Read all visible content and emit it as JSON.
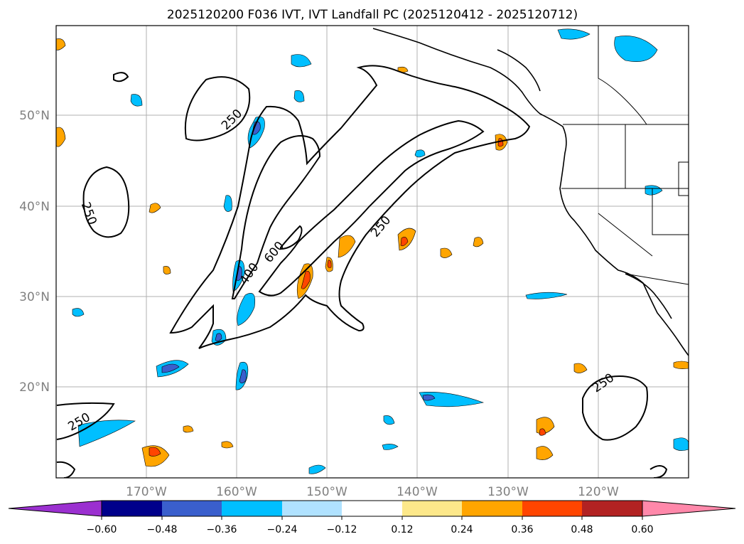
{
  "title": "2025120200 F036 IVT, IVT Landfall PC (2025120412 - 2025120712)",
  "lat_labels": [
    "50°N",
    "40°N",
    "30°N",
    "20°N"
  ],
  "lon_labels": [
    "170°W",
    "160°W",
    "150°W",
    "140°W",
    "130°W",
    "120°W"
  ],
  "contour_labels": {
    "a": "250",
    "b": "250",
    "c": "250",
    "d": "250",
    "e": "250",
    "f": "600",
    "g": "400"
  },
  "colorbar": {
    "ticks": [
      "−0.60",
      "−0.48",
      "−0.36",
      "−0.24",
      "−0.12",
      "0.12",
      "0.24",
      "0.36",
      "0.48",
      "0.60"
    ],
    "colors": [
      "#9b30d0",
      "#00008b",
      "#3a5fcd",
      "#00bfff",
      "#b0e2ff",
      "#ffffff",
      "#fde88a",
      "#ffa500",
      "#ff4500",
      "#b22222",
      "#ff88aa"
    ]
  }
}
